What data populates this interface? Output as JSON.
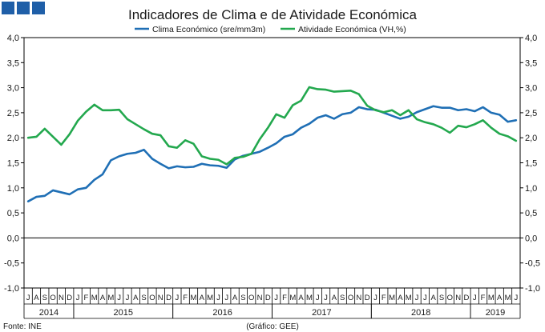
{
  "chart_data": {
    "type": "line",
    "title": "Indicadores de Clima e de Atividade Económica",
    "legend_placement": "top",
    "y_ticks": [
      "4,0",
      "3,5",
      "3,0",
      "2,5",
      "2,0",
      "1,5",
      "1,0",
      "0,5",
      "0,0",
      "-0,5",
      "-1,0"
    ],
    "ylim": [
      -1.0,
      4.0
    ],
    "grid": false,
    "month_labels": [
      "J",
      "A",
      "S",
      "O",
      "N",
      "D",
      "J",
      "F",
      "M",
      "A",
      "M",
      "J",
      "J",
      "A",
      "S",
      "O",
      "N",
      "D",
      "J",
      "F",
      "M",
      "A",
      "M",
      "J",
      "J",
      "A",
      "S",
      "O",
      "N",
      "D",
      "J",
      "F",
      "M",
      "A",
      "M",
      "J",
      "J",
      "A",
      "S",
      "O",
      "N",
      "D",
      "J",
      "F",
      "M",
      "A",
      "M",
      "J",
      "J",
      "A",
      "S",
      "O",
      "N",
      "D",
      "J",
      "F",
      "M",
      "A",
      "M",
      "J"
    ],
    "years": [
      {
        "label": "2014",
        "start": 0,
        "count": 6
      },
      {
        "label": "2015",
        "start": 6,
        "count": 12
      },
      {
        "label": "2016",
        "start": 18,
        "count": 12
      },
      {
        "label": "2017",
        "start": 30,
        "count": 12
      },
      {
        "label": "2018",
        "start": 42,
        "count": 12
      },
      {
        "label": "2019",
        "start": 54,
        "count": 6
      }
    ],
    "series": [
      {
        "name": "Clima Económico (sre/mm3m)",
        "color": "#1f6fb5",
        "values": [
          0.73,
          0.82,
          0.84,
          0.95,
          0.91,
          0.87,
          0.97,
          1.0,
          1.16,
          1.27,
          1.55,
          1.63,
          1.68,
          1.7,
          1.76,
          1.58,
          1.48,
          1.39,
          1.43,
          1.41,
          1.42,
          1.48,
          1.45,
          1.44,
          1.4,
          1.57,
          1.64,
          1.68,
          1.72,
          1.8,
          1.89,
          2.02,
          2.07,
          2.2,
          2.28,
          2.4,
          2.45,
          2.38,
          2.47,
          2.5,
          2.61,
          2.57,
          2.56,
          2.5,
          2.44,
          2.38,
          2.42,
          2.51,
          2.57,
          2.63,
          2.6,
          2.6,
          2.55,
          2.57,
          2.53,
          2.61,
          2.5,
          2.46,
          2.32,
          2.35
        ]
      },
      {
        "name": "Atividade Económica (VH,%)",
        "color": "#23a84e",
        "values": [
          2.0,
          2.02,
          2.18,
          2.02,
          1.86,
          2.07,
          2.34,
          2.52,
          2.66,
          2.55,
          2.55,
          2.56,
          2.37,
          2.27,
          2.17,
          2.08,
          2.05,
          1.83,
          1.8,
          1.95,
          1.88,
          1.63,
          1.58,
          1.56,
          1.47,
          1.6,
          1.62,
          1.68,
          1.97,
          2.2,
          2.47,
          2.4,
          2.65,
          2.74,
          3.01,
          2.97,
          2.96,
          2.92,
          2.93,
          2.94,
          2.87,
          2.64,
          2.55,
          2.51,
          2.55,
          2.45,
          2.55,
          2.37,
          2.31,
          2.27,
          2.2,
          2.1,
          2.24,
          2.21,
          2.27,
          2.35,
          2.2,
          2.08,
          2.03,
          1.94
        ]
      }
    ]
  },
  "footer": {
    "source": "Fonte: INE",
    "credit": "(Gráfico: GEE)"
  }
}
